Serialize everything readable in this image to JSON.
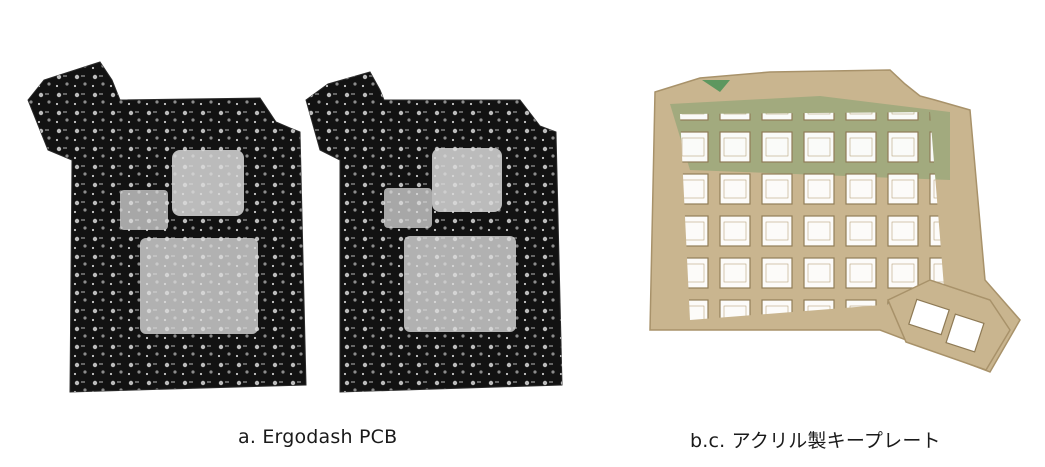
{
  "captions": {
    "pcb": "a. Ergodash PCB",
    "plate": "b.c. アクリル製キープレート"
  },
  "colors": {
    "background": "#ffffff",
    "pcb_board": "#121212",
    "pcb_silkscreen": "#d9d9d9",
    "pcb_pad": "#bdbdbd",
    "plate_paper": "#c9b58f",
    "plate_edge": "#a8926a",
    "plate_backing_green": "#2f8a4a"
  },
  "icons": {
    "pcb_board_left": "pcb-board-icon",
    "pcb_board_right": "pcb-board-icon",
    "acrylic_plates": "acrylic-plate-icon"
  }
}
